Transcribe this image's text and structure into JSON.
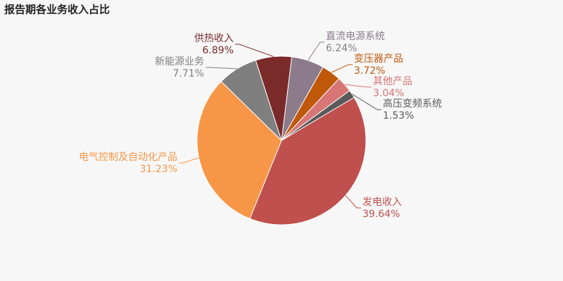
{
  "chart_data": {
    "type": "pie",
    "title": "报告期各业务收入占比",
    "categories": [
      "直流电源系统",
      "变压器产品",
      "其他产品",
      "高压变频系统",
      "发电收入",
      "电气控制及自动化产品",
      "新能源业务",
      "供热收入"
    ],
    "values": [
      6.24,
      3.72,
      3.04,
      1.53,
      39.64,
      31.23,
      7.71,
      6.89
    ],
    "value_labels": [
      "6.24%",
      "3.72%",
      "3.04%",
      "1.53%",
      "39.64%",
      "31.23%",
      "7.71%",
      "6.89%"
    ],
    "colors": [
      "#8b7b8b",
      "#c0580a",
      "#d87575",
      "#5a5a5a",
      "#c0504d",
      "#f79646",
      "#7f7f7f",
      "#7b2a2a"
    ]
  }
}
